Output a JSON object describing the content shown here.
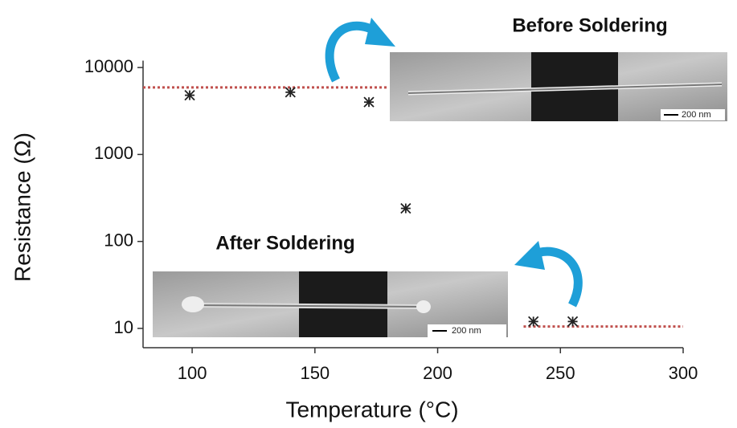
{
  "chart_data": {
    "type": "scatter",
    "x_label": "Temperature (°C)",
    "y_label": "Resistance (Ω)",
    "annotations": [
      "Before Soldering",
      "After Soldering"
    ],
    "scale_bars": [
      "200 nm",
      "200 nm"
    ],
    "x": [
      99,
      140,
      172,
      187,
      239,
      255
    ],
    "values": [
      4800,
      5200,
      4000,
      240,
      12,
      12
    ],
    "color": "#222222",
    "xlim": [
      80,
      300
    ],
    "ylim": [
      6,
      12000
    ],
    "xticks": [
      100,
      150,
      200,
      250,
      300
    ],
    "yticks": [
      10,
      100,
      1000,
      10000
    ],
    "log_y": true,
    "reference_lines": [
      {
        "y": 5900,
        "x": [
          80,
          180
        ]
      },
      {
        "y": 10.5,
        "x": [
          235,
          300
        ]
      }
    ],
    "reference_color": "#c0504d"
  }
}
